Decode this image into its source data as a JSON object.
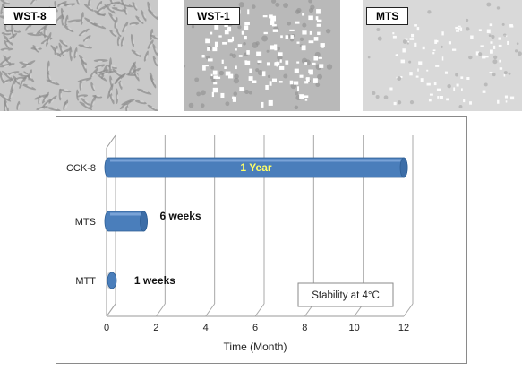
{
  "panels": [
    {
      "label": "WST-8",
      "tone": "#c9c9c9"
    },
    {
      "label": "WST-1",
      "tone": "#b9b9b9"
    },
    {
      "label": "MTS",
      "tone": "#d9d9d9"
    }
  ],
  "chart_data": {
    "type": "bar",
    "orientation": "horizontal",
    "style": "3d-cylinder",
    "categories": [
      "CCK-8",
      "MTS",
      "MTT"
    ],
    "values": [
      12,
      1.5,
      0.25
    ],
    "data_labels": [
      "1 Year",
      "6 weeks",
      "1 weeks"
    ],
    "xlabel": "Time (Month)",
    "ylabel": "",
    "xlim": [
      0,
      12
    ],
    "xticks": [
      "0",
      "2",
      "4",
      "6",
      "8",
      "10",
      "12"
    ],
    "annotation": "Stability at 4°C",
    "bar_color": "#4a7ebb",
    "label_highlight_color": "#ffff66",
    "grid": true
  }
}
